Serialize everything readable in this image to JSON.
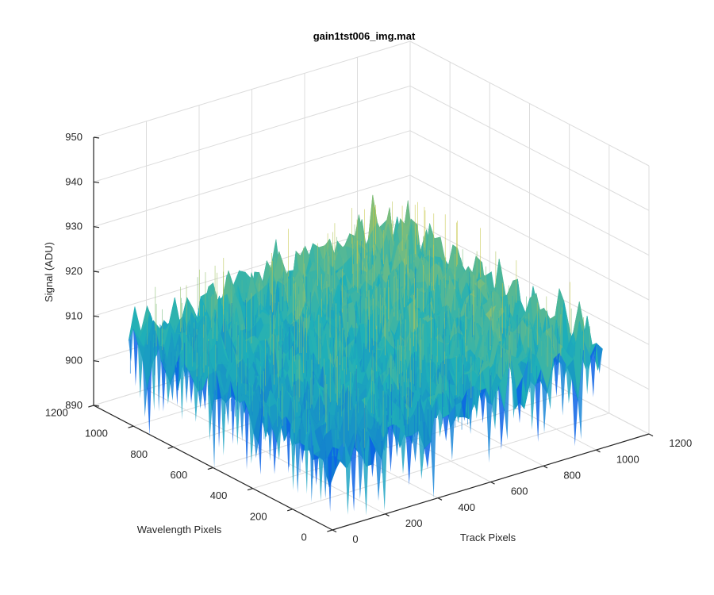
{
  "chart_data": {
    "type": "surface",
    "title": "gain1tst006_img.mat",
    "xlabel": "Track Pixels",
    "ylabel": "Wavelength Pixels",
    "zlabel": "Signal (ADU)",
    "xlim": [
      0,
      1200
    ],
    "ylim": [
      0,
      1200
    ],
    "zlim": [
      890,
      950
    ],
    "x_ticks": [
      "0",
      "200",
      "400",
      "600",
      "800",
      "1000",
      "1200"
    ],
    "y_ticks": [
      "0",
      "200",
      "400",
      "600",
      "800",
      "1000",
      "1200"
    ],
    "z_ticks": [
      "890",
      "900",
      "910",
      "920",
      "930",
      "940",
      "950"
    ],
    "grid": true,
    "colormap": "parula",
    "data_extent": {
      "x": [
        0,
        1024
      ],
      "y": [
        0,
        1024
      ]
    },
    "surface_profile": {
      "x_samples": [
        0,
        256,
        512,
        768,
        1024
      ],
      "y_samples": [
        0,
        256,
        512,
        768,
        1024
      ],
      "z_mean": [
        [
          905,
          907,
          909,
          911,
          912
        ],
        [
          906,
          908,
          910,
          912,
          913
        ],
        [
          907,
          909,
          911,
          913,
          914
        ],
        [
          908,
          910,
          912,
          914,
          915
        ],
        [
          909,
          911,
          913,
          915,
          916
        ]
      ],
      "noise_amplitude": 6
    },
    "colors": {
      "low": "#0a5fe0",
      "mid": "#1fb0b8",
      "high": "#c8c84a"
    }
  }
}
